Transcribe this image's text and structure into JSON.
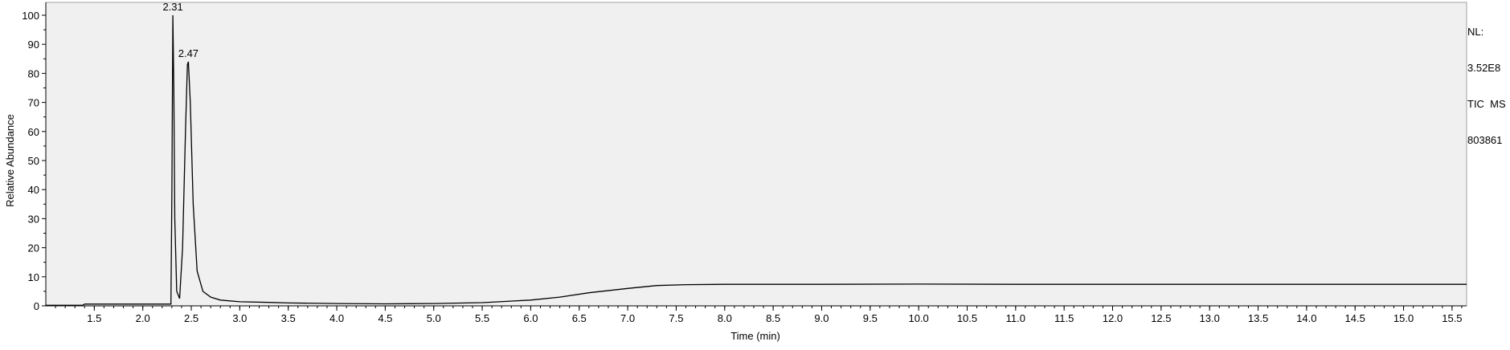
{
  "chart_data": {
    "type": "line",
    "title": "",
    "xlabel": "Time (min)",
    "ylabel": "Relative Abundance",
    "xlim": [
      1.0,
      15.65
    ],
    "ylim": [
      0,
      100
    ],
    "x_ticks": [
      "1.5",
      "2.0",
      "2.5",
      "3.0",
      "3.5",
      "4.0",
      "4.5",
      "5.0",
      "5.5",
      "6.0",
      "6.5",
      "7.0",
      "7.5",
      "8.0",
      "8.5",
      "9.0",
      "9.5",
      "10.0",
      "10.5",
      "11.0",
      "11.5",
      "12.0",
      "12.5",
      "13.0",
      "13.5",
      "14.0",
      "14.5",
      "15.0",
      "15.5"
    ],
    "y_ticks": [
      "0",
      "10",
      "20",
      "30",
      "40",
      "50",
      "60",
      "70",
      "80",
      "90",
      "100"
    ],
    "grid": false,
    "background": "#f0f0f0",
    "line_color": "#000000",
    "series": [
      {
        "x": [
          1.0,
          1.38,
          1.4,
          2.29,
          2.3,
          2.31,
          2.32,
          2.33,
          2.35,
          2.38,
          2.41,
          2.44,
          2.46,
          2.47,
          2.49,
          2.52,
          2.56,
          2.62,
          2.7,
          2.8,
          3.0,
          3.3,
          3.5,
          4.0,
          4.5,
          5.0,
          5.5,
          6.0,
          6.3,
          6.6,
          7.0,
          7.3,
          7.6,
          8.0,
          9.0,
          10.0,
          11.0,
          12.0,
          13.0,
          14.0,
          15.0,
          15.65
        ],
        "y": [
          0.2,
          0.2,
          0.6,
          0.6,
          40,
          100,
          75,
          30,
          5,
          2.5,
          20,
          60,
          83,
          84,
          70,
          35,
          12,
          5,
          3,
          2,
          1.4,
          1.2,
          1.0,
          0.8,
          0.7,
          0.8,
          1.1,
          2.0,
          3.0,
          4.5,
          6.0,
          7.0,
          7.3,
          7.4,
          7.4,
          7.5,
          7.4,
          7.4,
          7.4,
          7.4,
          7.4,
          7.4
        ]
      }
    ],
    "peaks": [
      {
        "label": "2.31",
        "x": 2.31,
        "y": 100
      },
      {
        "label": "2.47",
        "x": 2.47,
        "y": 84
      }
    ]
  },
  "info": {
    "nl_label": "NL:",
    "nl_value": "3.52E8",
    "trace": "TIC  MS",
    "sample": "803861"
  }
}
